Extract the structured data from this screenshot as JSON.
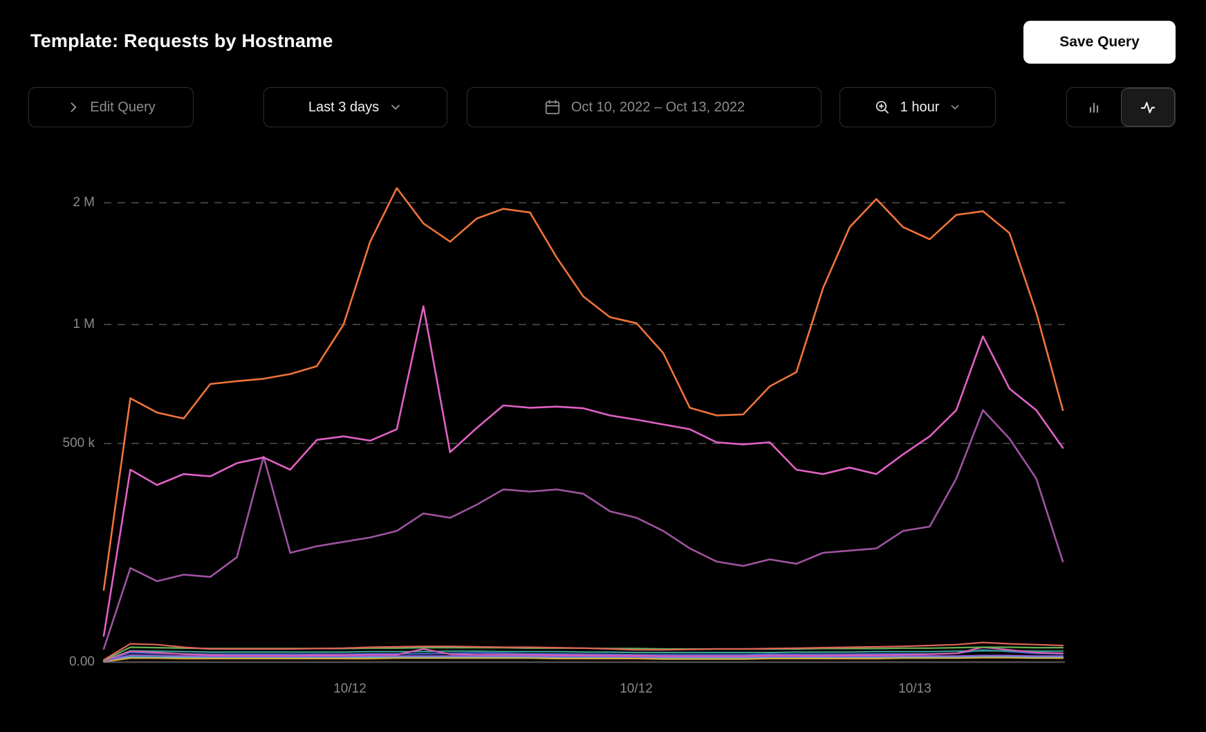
{
  "header": {
    "title": "Template: Requests by Hostname",
    "save_button": "Save Query"
  },
  "toolbar": {
    "edit_query": "Edit Query",
    "time_range": "Last 3 days",
    "date_range": "Oct 10, 2022 – Oct 13, 2022",
    "interval": "1 hour",
    "icons": {
      "edit_query": "chevron-right-icon",
      "time_range": "chevron-down-icon",
      "date_range": "calendar-icon",
      "interval_left": "zoom-in-icon",
      "interval_right": "chevron-down-icon",
      "toggle_inactive": "bar-chart-icon",
      "toggle_active": "line-chart-icon"
    }
  },
  "chart_data": {
    "type": "line",
    "title": "Requests by Hostname",
    "grid": "horizontal dashed gridlines, dark theme",
    "legend": "none",
    "x_axis": {
      "tick_labels": [
        "10/12",
        "10/12",
        "10/13"
      ],
      "range_label": "Oct 10, 2022 – Oct 13, 2022",
      "interval": "1 hour"
    },
    "y_axis": {
      "tick_labels": [
        "2 M",
        "1 M",
        "500 k",
        "0.00"
      ],
      "tick_values": [
        2000000,
        1000000,
        500000,
        0
      ],
      "scale": "non-linear (compressed above 500k)"
    },
    "value_scale": 1000,
    "series": [
      {
        "id": "minor-cyan",
        "color": "#57b8d8",
        "major": false,
        "values_k": [
          2,
          12,
          11,
          11,
          10,
          10,
          10,
          10,
          10,
          10,
          11,
          11,
          11,
          11,
          11,
          11,
          11,
          10,
          10,
          10,
          10,
          10,
          10,
          10,
          10,
          10,
          10,
          11,
          11,
          11,
          11,
          11,
          12,
          13,
          12,
          12,
          11
        ]
      },
      {
        "id": "minor-yellow",
        "color": "#d6aa3e",
        "major": false,
        "values_k": [
          1,
          9,
          9,
          8,
          8,
          8,
          8,
          8,
          8,
          8,
          8,
          9,
          9,
          9,
          9,
          9,
          9,
          8,
          8,
          8,
          8,
          7,
          7,
          7,
          7,
          8,
          8,
          8,
          8,
          8,
          9,
          9,
          9,
          10,
          10,
          9,
          9
        ]
      },
      {
        "id": "minor-violet",
        "color": "#8f62d6",
        "major": false,
        "values_k": [
          2,
          16,
          15,
          14,
          13,
          13,
          13,
          13,
          13,
          13,
          14,
          14,
          14,
          14,
          14,
          14,
          14,
          13,
          13,
          13,
          12,
          12,
          12,
          12,
          12,
          13,
          13,
          13,
          13,
          13,
          14,
          14,
          14,
          15,
          15,
          14,
          14
        ]
      },
      {
        "id": "minor-blue",
        "color": "#4565d2",
        "major": false,
        "values_k": [
          2,
          22,
          20,
          19,
          18,
          18,
          18,
          18,
          18,
          18,
          19,
          19,
          19,
          20,
          21,
          20,
          19,
          19,
          18,
          18,
          17,
          17,
          17,
          17,
          17,
          18,
          18,
          18,
          18,
          19,
          19,
          19,
          20,
          28,
          24,
          20,
          19
        ]
      },
      {
        "id": "minor-teal",
        "color": "#3aa393",
        "major": false,
        "values_k": [
          3,
          26,
          25,
          24,
          23,
          23,
          23,
          23,
          23,
          23,
          24,
          24,
          24,
          25,
          25,
          24,
          24,
          24,
          23,
          23,
          22,
          22,
          22,
          22,
          22,
          22,
          23,
          23,
          23,
          24,
          24,
          24,
          25,
          26,
          26,
          25,
          25
        ]
      },
      {
        "id": "minor-pink",
        "color": "#d75fb1",
        "major": false,
        "values_k": [
          3,
          25,
          22,
          18,
          16,
          15,
          15,
          15,
          16,
          16,
          17,
          17,
          30,
          18,
          17,
          17,
          17,
          16,
          16,
          15,
          15,
          14,
          14,
          14,
          14,
          15,
          15,
          15,
          16,
          16,
          17,
          18,
          20,
          34,
          28,
          22,
          20
        ]
      },
      {
        "id": "minor-green",
        "color": "#68b258",
        "major": false,
        "values_k": [
          4,
          34,
          33,
          32,
          31,
          31,
          31,
          31,
          31,
          31,
          32,
          32,
          33,
          33,
          33,
          33,
          32,
          32,
          32,
          31,
          31,
          30,
          30,
          30,
          30,
          30,
          30,
          31,
          31,
          31,
          32,
          32,
          33,
          34,
          34,
          33,
          33
        ]
      },
      {
        "id": "minor-salmon",
        "color": "#e0635a",
        "major": false,
        "values_k": [
          5,
          42,
          40,
          34,
          30,
          30,
          30,
          30,
          31,
          32,
          34,
          35,
          36,
          36,
          35,
          34,
          34,
          33,
          32,
          30,
          28,
          28,
          29,
          30,
          30,
          31,
          32,
          33,
          34,
          35,
          36,
          38,
          40,
          45,
          42,
          40,
          38
        ]
      },
      {
        "id": "purple",
        "color": "#9e54a0",
        "major": true,
        "values_k": [
          30,
          215,
          185,
          200,
          195,
          240,
          470,
          250,
          265,
          275,
          285,
          300,
          340,
          330,
          360,
          395,
          390,
          395,
          385,
          345,
          330,
          300,
          260,
          230,
          220,
          235,
          225,
          250,
          255,
          260,
          300,
          310,
          420,
          640,
          520,
          420,
          230
        ]
      },
      {
        "id": "magenta",
        "color": "#e161c5",
        "major": true,
        "values_k": [
          60,
          440,
          405,
          430,
          425,
          455,
          468,
          440,
          515,
          530,
          512,
          560,
          1150,
          480,
          565,
          660,
          650,
          655,
          648,
          618,
          600,
          580,
          560,
          505,
          498,
          505,
          440,
          430,
          445,
          430,
          475,
          530,
          640,
          950,
          730,
          640,
          490
        ]
      },
      {
        "id": "orange",
        "color": "#f0743a",
        "major": true,
        "values_k": [
          165,
          690,
          630,
          605,
          750,
          762,
          772,
          792,
          825,
          1000,
          1680,
          2120,
          1830,
          1680,
          1870,
          1950,
          1920,
          1550,
          1230,
          1060,
          1010,
          880,
          650,
          618,
          622,
          740,
          800,
          1300,
          1800,
          2030,
          1800,
          1700,
          1900,
          1930,
          1750,
          1100,
          640
        ]
      }
    ]
  }
}
